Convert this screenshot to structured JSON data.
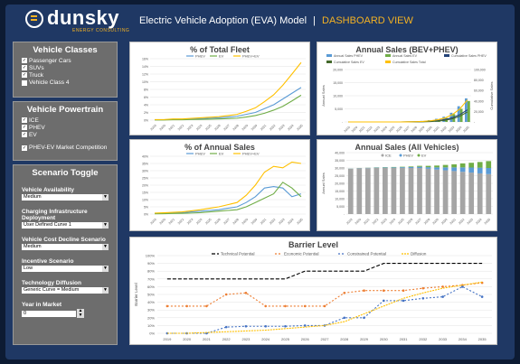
{
  "header": {
    "logo_word": "dunsky",
    "logo_sub": "ENERGY CONSULTING",
    "title": "Electric Vehicle Adoption (EVA) Model",
    "separator": "|",
    "view": "DASHBOARD VIEW"
  },
  "sidebar": {
    "vehicle_classes": {
      "heading": "Vehicle Classes",
      "items": [
        {
          "label": "Passenger Cars",
          "checked": true
        },
        {
          "label": "SUVs",
          "checked": true
        },
        {
          "label": "Truck",
          "checked": true
        },
        {
          "label": "Vehicle Class 4",
          "checked": false
        }
      ]
    },
    "powertrain": {
      "heading": "Vehicle Powertrain",
      "items": [
        {
          "label": "ICE",
          "checked": true
        },
        {
          "label": "PHEV",
          "checked": true
        },
        {
          "label": "EV",
          "checked": true
        }
      ],
      "extra": {
        "label": "PHEV-EV Market Competition",
        "checked": true
      }
    },
    "scenario": {
      "heading": "Scenario Toggle",
      "fields": [
        {
          "label": "Vehicle Availability",
          "value": "Medium"
        },
        {
          "label": "Charging Infrastructure Deployment",
          "value": "User Defined Curve 1"
        },
        {
          "label": "Vehicle Cost Decline Scenario",
          "value": "Medium"
        },
        {
          "label": "Incentive Scenario",
          "value": "Low"
        },
        {
          "label": "Technology Diffusion",
          "value": "Generic Curve = Medium"
        }
      ],
      "year_label": "Year in Market",
      "year_value": "0"
    }
  },
  "colors": {
    "phev": "#5b9bd5",
    "ev": "#70ad47",
    "phev_ev": "#ffc000",
    "ice": "#a5a5a5",
    "technical": "#000000",
    "economic": "#ed7d31",
    "constrained": "#4472c4",
    "diffusion": "#ffc000"
  },
  "years": [
    "2019",
    "2020",
    "2021",
    "2022",
    "2023",
    "2024",
    "2025",
    "2026",
    "2027",
    "2028",
    "2029",
    "2030",
    "2031",
    "2032",
    "2033",
    "2034",
    "2035"
  ],
  "chart_data": [
    {
      "id": "fleet",
      "type": "line",
      "title": "% of Total Fleet",
      "ylim": [
        0,
        16
      ],
      "yticks": [
        "0%",
        "2%",
        "4%",
        "6%",
        "8%",
        "10%",
        "12%",
        "14%",
        "16%"
      ],
      "series": [
        {
          "name": "PHEV",
          "values": [
            0.1,
            0.1,
            0.2,
            0.2,
            0.3,
            0.4,
            0.5,
            0.6,
            0.8,
            1.0,
            1.5,
            2.0,
            3.0,
            4.0,
            5.5,
            7.0,
            8.5
          ]
        },
        {
          "name": "EV",
          "values": [
            0.05,
            0.05,
            0.1,
            0.1,
            0.15,
            0.2,
            0.25,
            0.3,
            0.4,
            0.5,
            0.8,
            1.2,
            1.8,
            2.6,
            3.6,
            5.0,
            6.5
          ]
        },
        {
          "name": "PHEV+EV",
          "values": [
            0.15,
            0.15,
            0.3,
            0.3,
            0.45,
            0.6,
            0.75,
            0.9,
            1.2,
            1.5,
            2.3,
            3.2,
            4.8,
            6.6,
            9.1,
            12.0,
            15.0
          ]
        }
      ]
    },
    {
      "id": "annual_pct",
      "type": "line",
      "title": "% of Annual Sales",
      "ylim": [
        0,
        40
      ],
      "yticks": [
        "0%",
        "5%",
        "10%",
        "15%",
        "20%",
        "25%",
        "30%",
        "35%",
        "40%"
      ],
      "series": [
        {
          "name": "PHEV",
          "values": [
            0.5,
            0.6,
            0.8,
            1.0,
            1.5,
            2.0,
            2.5,
            3.0,
            4.0,
            5.0,
            8.0,
            12.0,
            18.0,
            19.0,
            18.0,
            12.0,
            14.0
          ]
        },
        {
          "name": "EV",
          "values": [
            0.2,
            0.3,
            0.4,
            0.5,
            0.7,
            1.0,
            1.5,
            2.0,
            2.5,
            3.0,
            5.0,
            8.0,
            11.0,
            14.0,
            22.0,
            18.0,
            12.0
          ]
        },
        {
          "name": "PHEV+EV",
          "values": [
            0.7,
            0.9,
            1.2,
            1.5,
            2.2,
            3.0,
            4.0,
            5.0,
            6.5,
            8.0,
            13.0,
            20.0,
            29.0,
            33.0,
            32.0,
            36.0,
            35.0
          ]
        }
      ]
    },
    {
      "id": "bev_phev",
      "type": "bar",
      "title": "Annual Sales (BEV+PHEV)",
      "ylabel": "Annual Sales",
      "y2label": "Cumulative Sales",
      "ylim": [
        0,
        20000
      ],
      "yticks": [
        "-",
        "5,000",
        "10,000",
        "15,000",
        "20,000"
      ],
      "y2lim": [
        0,
        100000
      ],
      "y2ticks": [
        "-",
        "20,000",
        "40,000",
        "60,000",
        "80,000",
        "100,000"
      ],
      "legend": [
        "Annual Sales PHEV",
        "Annual Sales EV",
        "Cumulative Sales PHEV",
        "Cumulative Sales EV",
        "Cumulative Sales Total"
      ],
      "phev": [
        0,
        0,
        0,
        0,
        0,
        0,
        0,
        0,
        100,
        200,
        400,
        700,
        1200,
        2000,
        3500,
        6000,
        9000
      ],
      "ev": [
        0,
        0,
        0,
        0,
        0,
        0,
        0,
        0,
        50,
        100,
        200,
        400,
        800,
        1500,
        3000,
        5000,
        8000
      ],
      "cum_phev": [
        0,
        0,
        0,
        0,
        0,
        0,
        0,
        0,
        100,
        300,
        700,
        1400,
        2600,
        4600,
        8100,
        14100,
        23100
      ],
      "cum_ev": [
        0,
        0,
        0,
        0,
        0,
        0,
        0,
        0,
        50,
        150,
        350,
        750,
        1550,
        3050,
        6050,
        11050,
        19050
      ],
      "cum_total": [
        0,
        0,
        0,
        0,
        0,
        0,
        0,
        0,
        150,
        450,
        1050,
        2150,
        4150,
        7650,
        14150,
        25150,
        42150
      ]
    },
    {
      "id": "all_vehicles",
      "type": "bar",
      "title": "Annual Sales (All Vehicles)",
      "ylabel": "Annual Sales",
      "ylim": [
        0,
        40000
      ],
      "yticks": [
        "-",
        "5,000",
        "10,000",
        "15,000",
        "20,000",
        "25,000",
        "30,000",
        "35,000",
        "40,000"
      ],
      "legend": [
        "ICE",
        "PHEV",
        "EV"
      ],
      "ice": [
        29500,
        29800,
        29900,
        30000,
        30000,
        30000,
        30000,
        30000,
        30000,
        29500,
        29000,
        28500,
        28000,
        27500,
        27000,
        26500,
        26000
      ],
      "phev": [
        100,
        150,
        200,
        250,
        300,
        400,
        500,
        600,
        800,
        1000,
        1400,
        1900,
        2400,
        2900,
        3300,
        3700,
        4000
      ],
      "ev": [
        50,
        80,
        100,
        150,
        200,
        250,
        300,
        400,
        600,
        900,
        1200,
        1600,
        2000,
        2600,
        3100,
        3700,
        4500
      ]
    },
    {
      "id": "barrier",
      "type": "line",
      "title": "Barrier Level",
      "ylabel": "Barrier Level",
      "ylim": [
        0,
        100
      ],
      "yticks": [
        "0%",
        "10%",
        "20%",
        "30%",
        "40%",
        "50%",
        "60%",
        "70%",
        "80%",
        "90%",
        "100%"
      ],
      "series": [
        {
          "name": "Technical Potential",
          "values": [
            70,
            70,
            70,
            70,
            70,
            70,
            70,
            80,
            80,
            80,
            80,
            90,
            90,
            90,
            90,
            90,
            90
          ]
        },
        {
          "name": "Economic Potential",
          "values": [
            35,
            35,
            35,
            50,
            52,
            35,
            35,
            35,
            35,
            52,
            55,
            55,
            55,
            58,
            60,
            62,
            65
          ]
        },
        {
          "name": "Constrained Potential",
          "values": [
            0,
            0,
            0,
            8,
            9,
            9,
            9,
            10,
            10,
            20,
            20,
            42,
            42,
            45,
            47,
            60,
            47
          ]
        },
        {
          "name": "Diffusion",
          "values": [
            0,
            0,
            1,
            2,
            3,
            4,
            6,
            8,
            10,
            15,
            25,
            35,
            45,
            52,
            58,
            62,
            66
          ]
        }
      ]
    }
  ]
}
